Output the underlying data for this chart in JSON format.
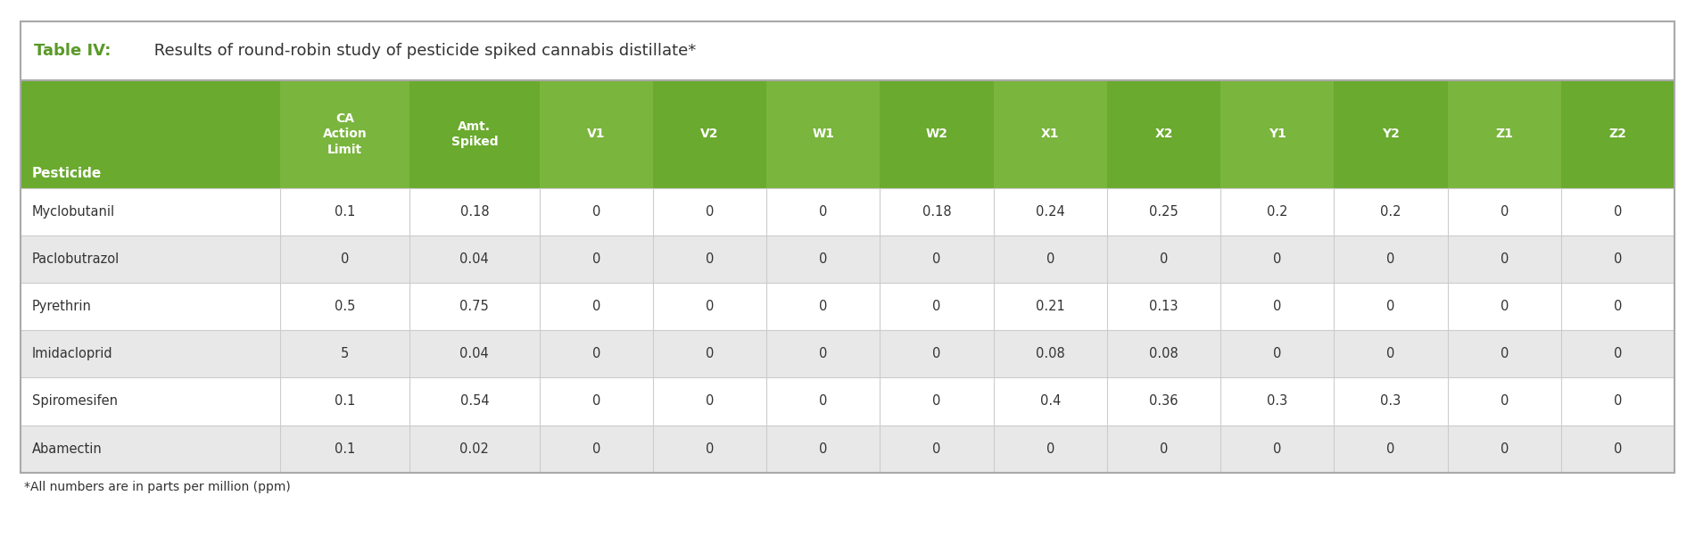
{
  "title_bold": "Table IV:",
  "title_regular": " Results of round-robin study of pesticide spiked cannabis distillate*",
  "footnote": "*All numbers are in parts per million (ppm)",
  "col_display": [
    "Pesticide",
    "CA\nAction\nLimit",
    "Amt.\nSpiked",
    "V1",
    "V2",
    "W1",
    "W2",
    "X1",
    "X2",
    "Y1",
    "Y2",
    "Z1",
    "Z2"
  ],
  "rows": [
    [
      "Myclobutanil",
      "0.1",
      "0.18",
      "0",
      "0",
      "0",
      "0.18",
      "0.24",
      "0.25",
      "0.2",
      "0.2",
      "0",
      "0"
    ],
    [
      "Paclobutrazol",
      "0",
      "0.04",
      "0",
      "0",
      "0",
      "0",
      "0",
      "0",
      "0",
      "0",
      "0",
      "0"
    ],
    [
      "Pyrethrin",
      "0.5",
      "0.75",
      "0",
      "0",
      "0",
      "0",
      "0.21",
      "0.13",
      "0",
      "0",
      "0",
      "0"
    ],
    [
      "Imidacloprid",
      "5",
      "0.04",
      "0",
      "0",
      "0",
      "0",
      "0.08",
      "0.08",
      "0",
      "0",
      "0",
      "0"
    ],
    [
      "Spiromesifen",
      "0.1",
      "0.54",
      "0",
      "0",
      "0",
      "0",
      "0.4",
      "0.36",
      "0.3",
      "0.3",
      "0",
      "0"
    ],
    [
      "Abamectin",
      "0.1",
      "0.02",
      "0",
      "0",
      "0",
      "0",
      "0",
      "0",
      "0",
      "0",
      "0",
      "0"
    ]
  ],
  "header_green_colors": [
    "#6aaa2e",
    "#7ab53e",
    "#6aaa2e",
    "#7ab53e",
    "#6aaa2e",
    "#7ab53e",
    "#6aaa2e",
    "#7ab53e",
    "#6aaa2e",
    "#7ab53e",
    "#6aaa2e",
    "#7ab53e",
    "#6aaa2e"
  ],
  "header_text_color": "#ffffff",
  "row_colors": [
    "#ffffff",
    "#e8e8e8"
  ],
  "grid_color": "#cccccc",
  "border_color": "#aaaaaa",
  "title_color_bold": "#5a9a28",
  "title_color_regular": "#333333",
  "footnote_color": "#333333",
  "col_widths_rel": [
    1.6,
    0.8,
    0.8,
    0.7,
    0.7,
    0.7,
    0.7,
    0.7,
    0.7,
    0.7,
    0.7,
    0.7,
    0.7
  ]
}
